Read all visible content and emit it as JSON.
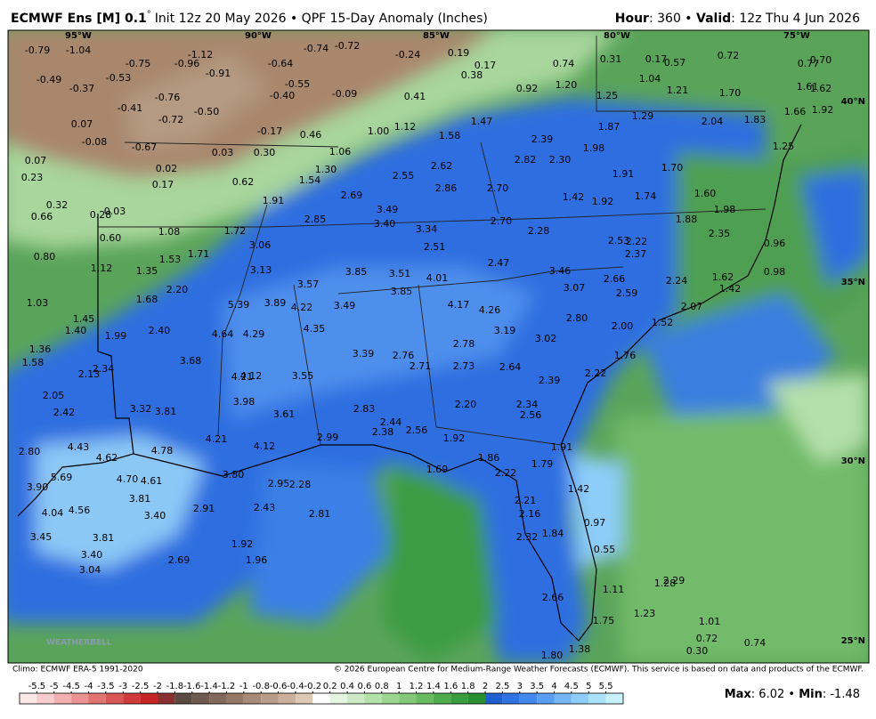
{
  "header": {
    "model": "ECMWF Ens [M] 0.1",
    "degree": "°",
    "product": "Init 12z 20 May 2026 • QPF 15-Day Anomaly (Inches)",
    "hour_key": "Hour",
    "hour_value": ": 360 • ",
    "valid_key": "Valid",
    "valid_value": ": 12z Thu 4 Jun 2026"
  },
  "map": {
    "lon_labels": [
      "95°W",
      "90°W",
      "85°W",
      "80°W",
      "75°W"
    ],
    "lat_labels": [
      "40°N",
      "35°N",
      "30°N",
      "25°N"
    ],
    "logo": "WEATHERBELL",
    "labels": [
      "-0.79",
      "-1.04",
      "-0.75",
      "-0.96",
      "-1.12",
      "-0.91",
      "-0.64",
      "-0.74",
      "-0.72",
      "-0.24",
      "0.19",
      "0.17",
      "0.38",
      "0.74",
      "0.31",
      "0.17",
      "0.57",
      "0.72",
      "0.77",
      "0.70",
      "-0.49",
      "-0.37",
      "-0.53",
      "-0.55",
      "-0.40",
      "-0.09",
      "0.41",
      "0.92",
      "1.20",
      "1.04",
      "1.21",
      "1.70",
      "1.61",
      "1.62",
      "1.25",
      "-0.76",
      "-0.41",
      "-0.72",
      "-0.50",
      "1.29",
      "2.04",
      "1.83",
      "1.66",
      "1.92",
      "0.07",
      "-0.08",
      "-0.67",
      "-0.17",
      "0.46",
      "1.00",
      "1.12",
      "1.47",
      "1.58",
      "2.39",
      "1.87",
      "1.25",
      "0.03",
      "0.30",
      "1.06",
      "2.82",
      "2.30",
      "1.98",
      "0.07",
      "2.62",
      "0.23",
      "0.02",
      "0.17",
      "0.62",
      "1.30",
      "1.54",
      "2.55",
      "1.91",
      "1.70",
      "2.86",
      "2.70",
      "2.69",
      "1.42",
      "1.92",
      "1.74",
      "1.60",
      "0.32",
      "0.66",
      "0.28",
      "0.03",
      "1.91",
      "3.49",
      "2.85",
      "3.40",
      "2.70",
      "1.88",
      "1.98",
      "0.60",
      "1.08",
      "1.72",
      "3.34",
      "2.28",
      "2.53",
      "2.22",
      "2.35",
      "3.06",
      "2.51",
      "2.37",
      "0.96",
      "0.80",
      "1.53",
      "1.71",
      "2.47",
      "1.12",
      "1.35",
      "3.13",
      "3.85",
      "3.51",
      "4.01",
      "3.46",
      "2.66",
      "2.24",
      "1.62",
      "0.98",
      "1.42",
      "2.20",
      "3.57",
      "3.85",
      "3.07",
      "2.59",
      "1.68",
      "1.03",
      "5.39",
      "3.89",
      "4.22",
      "3.49",
      "4.17",
      "4.26",
      "2.07",
      "1.45",
      "1.40",
      "1.99",
      "2.40",
      "4.35",
      "4.64",
      "4.29",
      "3.19",
      "2.80",
      "2.00",
      "1.52",
      "3.02",
      "1.36",
      "1.58",
      "2.78",
      "3.68",
      "3.39",
      "2.76",
      "1.76",
      "2.34",
      "2.13",
      "2.71",
      "2.73",
      "2.64",
      "4.21",
      "4.12",
      "3.55",
      "2.22",
      "2.39",
      "2.05",
      "3.32",
      "3.81",
      "3.98",
      "2.42",
      "2.83",
      "2.20",
      "2.34",
      "2.56",
      "3.61",
      "2.44",
      "2.38",
      "2.56",
      "1.92",
      "2.99",
      "4.21",
      "4.12",
      "1.91",
      "4.43",
      "4.62",
      "4.78",
      "2.80",
      "1.86",
      "1.79",
      "1.69",
      "2.22",
      "5.69",
      "4.70",
      "4.61",
      "3.80",
      "2.95",
      "2.28",
      "3.90",
      "1.42",
      "3.81",
      "2.21",
      "4.04",
      "4.56",
      "3.40",
      "2.91",
      "2.43",
      "2.81",
      "2.16",
      "0.97",
      "3.45",
      "3.81",
      "2.32",
      "1.84",
      "1.92",
      "3.40",
      "2.69",
      "1.96",
      "0.55",
      "3.04",
      "2.29",
      "1.28",
      "1.11",
      "2.66",
      "1.23",
      "1.75",
      "1.01",
      "0.72",
      "0.30",
      "0.74",
      "1.38",
      "1.80"
    ]
  },
  "footer": {
    "climo": "Climo: ECMWF ERA-5 1991-2020",
    "copyright": "© 2026 European Centre for Medium-Range Weather Forecasts (ECMWF). This service is based on data and products of the ECMWF.",
    "max_key": "Max",
    "max_value": ": 6.02 • ",
    "min_key": "Min",
    "min_value": ": -1.48"
  },
  "colorbar": {
    "ticks": [
      -5.5,
      -5,
      -4.5,
      -4,
      -3.5,
      -3,
      -2.5,
      -2,
      -1.8,
      -1.6,
      -1.4,
      -1.2,
      -1,
      -0.8,
      -0.6,
      -0.4,
      -0.2,
      0.2,
      0.4,
      0.6,
      0.8,
      1,
      1.2,
      1.4,
      1.6,
      1.8,
      2,
      2.5,
      3,
      3.5,
      4,
      4.5,
      5,
      5.5
    ],
    "colors": [
      "#fde8e8",
      "#f8cccc",
      "#f2b0b0",
      "#eb9292",
      "#e37474",
      "#da5656",
      "#cf3a3a",
      "#c42424",
      "#8b3030",
      "#5a4a42",
      "#6e5a4e",
      "#82695a",
      "#967a66",
      "#a88b76",
      "#ba9d88",
      "#cbb09c",
      "#ddc8b6",
      "#ffffff",
      "#e6f4e2",
      "#cdeac6",
      "#b4e0aa",
      "#9bd590",
      "#82c878",
      "#69bb62",
      "#50ad4e",
      "#3a9e3e",
      "#2a8e32",
      "#1f5fd0",
      "#2f72e4",
      "#4388ee",
      "#5a9ef4",
      "#74b6f8",
      "#8ecdfa",
      "#aae2fc",
      "#c8f2fe"
    ]
  }
}
